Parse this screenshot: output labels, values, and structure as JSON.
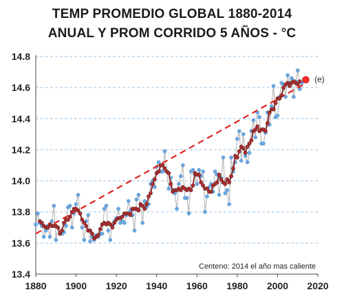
{
  "chart_data": {
    "type": "line",
    "title_line1": "TEMP PROMEDIO GLOBAL 1880-2014",
    "title_line2": "ANUAL Y PROM CORRIDO 5 AÑOS - °C",
    "xlim": [
      1880,
      2020
    ],
    "ylim": [
      13.4,
      14.8
    ],
    "x_ticks": [
      "1880",
      "1900",
      "1920",
      "1940",
      "1960",
      "1980",
      "2000",
      "2020"
    ],
    "y_ticks": [
      "13.4",
      "13.6",
      "13.8",
      "14.0",
      "14.2",
      "14.4",
      "14.6",
      "14.8"
    ],
    "x_tick_values": [
      1880,
      1900,
      1920,
      1940,
      1960,
      1980,
      2000,
      2020
    ],
    "y_tick_values": [
      13.4,
      13.6,
      13.8,
      14.0,
      14.2,
      14.4,
      14.6,
      14.8
    ],
    "grid": "horizontal dashed",
    "annotation": "Centeno: 2014 el año mas caliente",
    "estimate_label": "(e)",
    "colors": {
      "annual_line": "#b9b9b9",
      "annual_point": "#6fa8e0",
      "running_mean_line": "#8b2a2a",
      "running_mean_point": "#b03030",
      "trend": "#e02020",
      "estimate_point": "#ff2a2a",
      "grid": "#9ec5e8"
    },
    "series": [
      {
        "kind": "annual",
        "x": [
          1880,
          1881,
          1882,
          1883,
          1884,
          1885,
          1886,
          1887,
          1888,
          1889,
          1890,
          1891,
          1892,
          1893,
          1894,
          1895,
          1896,
          1897,
          1898,
          1899,
          1900,
          1901,
          1902,
          1903,
          1904,
          1905,
          1906,
          1907,
          1908,
          1909,
          1910,
          1911,
          1912,
          1913,
          1914,
          1915,
          1916,
          1917,
          1918,
          1919,
          1920,
          1921,
          1922,
          1923,
          1924,
          1925,
          1926,
          1927,
          1928,
          1929,
          1930,
          1931,
          1932,
          1933,
          1934,
          1935,
          1936,
          1937,
          1938,
          1939,
          1940,
          1941,
          1942,
          1943,
          1944,
          1945,
          1946,
          1947,
          1948,
          1949,
          1950,
          1951,
          1952,
          1953,
          1954,
          1955,
          1956,
          1957,
          1958,
          1959,
          1960,
          1961,
          1962,
          1963,
          1964,
          1965,
          1966,
          1967,
          1968,
          1969,
          1970,
          1971,
          1972,
          1973,
          1974,
          1975,
          1976,
          1977,
          1978,
          1979,
          1980,
          1981,
          1982,
          1983,
          1984,
          1985,
          1986,
          1987,
          1988,
          1989,
          1990,
          1991,
          1992,
          1993,
          1994,
          1995,
          1996,
          1997,
          1998,
          1999,
          2000,
          2001,
          2002,
          2003,
          2004,
          2005,
          2006,
          2007,
          2008,
          2009,
          2010,
          2011,
          2012,
          2013
        ],
        "y": [
          13.72,
          13.79,
          13.73,
          13.71,
          13.64,
          13.68,
          13.71,
          13.64,
          13.74,
          13.84,
          13.62,
          13.7,
          13.66,
          13.66,
          13.67,
          13.71,
          13.83,
          13.84,
          13.7,
          13.79,
          13.85,
          13.91,
          13.79,
          13.7,
          13.62,
          13.74,
          13.78,
          13.61,
          13.64,
          13.62,
          13.65,
          13.64,
          13.66,
          13.66,
          13.82,
          13.84,
          13.68,
          13.62,
          13.71,
          13.74,
          13.76,
          13.82,
          13.73,
          13.74,
          13.73,
          13.78,
          13.87,
          13.81,
          13.78,
          13.68,
          13.88,
          13.91,
          13.85,
          13.73,
          13.87,
          13.83,
          13.85,
          13.98,
          14.0,
          13.96,
          14.09,
          14.12,
          14.06,
          14.06,
          14.19,
          14.06,
          13.95,
          14.02,
          13.94,
          13.92,
          13.82,
          13.98,
          14.03,
          14.1,
          13.89,
          13.89,
          13.79,
          14.06,
          14.07,
          14.04,
          13.98,
          14.07,
          14.03,
          14.06,
          13.8,
          13.9,
          13.96,
          13.98,
          13.93,
          14.06,
          14.04,
          13.91,
          14.02,
          14.15,
          13.92,
          13.94,
          13.85,
          14.15,
          14.06,
          14.12,
          14.27,
          14.32,
          14.13,
          14.3,
          14.16,
          14.12,
          14.18,
          14.32,
          14.39,
          14.28,
          14.44,
          14.41,
          14.24,
          14.24,
          14.31,
          14.44,
          14.36,
          14.48,
          14.61,
          14.41,
          14.42,
          14.54,
          14.63,
          14.62,
          14.54,
          14.68,
          14.63,
          14.66,
          14.54,
          14.64,
          14.71,
          14.59,
          14.63,
          14.65
        ]
      },
      {
        "kind": "running_mean_5yr",
        "x": [
          1882,
          1883,
          1884,
          1885,
          1886,
          1887,
          1888,
          1889,
          1890,
          1891,
          1892,
          1893,
          1894,
          1895,
          1896,
          1897,
          1898,
          1899,
          1900,
          1901,
          1902,
          1903,
          1904,
          1905,
          1906,
          1907,
          1908,
          1909,
          1910,
          1911,
          1912,
          1913,
          1914,
          1915,
          1916,
          1917,
          1918,
          1919,
          1920,
          1921,
          1922,
          1923,
          1924,
          1925,
          1926,
          1927,
          1928,
          1929,
          1930,
          1931,
          1932,
          1933,
          1934,
          1935,
          1936,
          1937,
          1938,
          1939,
          1940,
          1941,
          1942,
          1943,
          1944,
          1945,
          1946,
          1947,
          1948,
          1949,
          1950,
          1951,
          1952,
          1953,
          1954,
          1955,
          1956,
          1957,
          1958,
          1959,
          1960,
          1961,
          1962,
          1963,
          1964,
          1965,
          1966,
          1967,
          1968,
          1969,
          1970,
          1971,
          1972,
          1973,
          1974,
          1975,
          1976,
          1977,
          1978,
          1979,
          1980,
          1981,
          1982,
          1983,
          1984,
          1985,
          1986,
          1987,
          1988,
          1989,
          1990,
          1991,
          1992,
          1993,
          1994,
          1995,
          1996,
          1997,
          1998,
          1999,
          2000,
          2001,
          2002,
          2003,
          2004,
          2005,
          2006,
          2007,
          2008,
          2009,
          2010,
          2011
        ],
        "y": [
          13.74,
          13.73,
          13.71,
          13.7,
          13.7,
          13.72,
          13.71,
          13.71,
          13.71,
          13.7,
          13.66,
          13.68,
          13.73,
          13.75,
          13.75,
          13.77,
          13.8,
          13.82,
          13.82,
          13.81,
          13.79,
          13.75,
          13.73,
          13.71,
          13.68,
          13.68,
          13.66,
          13.63,
          13.64,
          13.65,
          13.69,
          13.72,
          13.73,
          13.72,
          13.73,
          13.72,
          13.7,
          13.73,
          13.75,
          13.76,
          13.76,
          13.77,
          13.79,
          13.79,
          13.79,
          13.78,
          13.82,
          13.82,
          13.82,
          13.81,
          13.85,
          13.84,
          13.82,
          13.85,
          13.9,
          13.92,
          13.98,
          14.01,
          14.05,
          14.06,
          14.1,
          14.1,
          14.08,
          14.06,
          14.05,
          13.98,
          13.93,
          13.94,
          13.94,
          13.95,
          13.94,
          13.96,
          13.95,
          13.94,
          13.95,
          13.94,
          13.97,
          14.05,
          14.04,
          14.04,
          13.99,
          13.97,
          13.95,
          13.95,
          13.93,
          13.93,
          13.97,
          13.98,
          13.99,
          14.04,
          14.01,
          13.99,
          13.98,
          14.01,
          13.99,
          14.03,
          14.08,
          14.16,
          14.15,
          14.19,
          14.22,
          14.21,
          14.18,
          14.22,
          14.24,
          14.26,
          14.32,
          14.33,
          14.35,
          14.32,
          14.33,
          14.33,
          14.32,
          14.37,
          14.44,
          14.46,
          14.46,
          14.5,
          14.53,
          14.53,
          14.55,
          14.6,
          14.62,
          14.63,
          14.61,
          14.63,
          14.64,
          14.63,
          14.62,
          14.64
        ]
      },
      {
        "kind": "trend",
        "x": [
          1880,
          2013
        ],
        "y": [
          13.66,
          14.62
        ]
      },
      {
        "kind": "estimate",
        "x": [
          2014
        ],
        "y": [
          14.65
        ]
      }
    ]
  }
}
